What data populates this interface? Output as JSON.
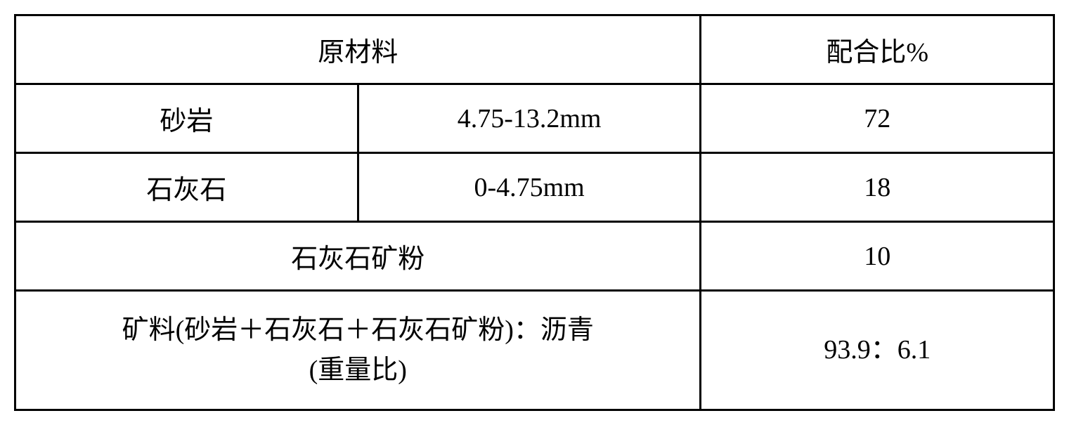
{
  "table": {
    "border_color": "#000000",
    "border_width": 3,
    "background_color": "#ffffff",
    "text_color": "#000000",
    "font_size": 38,
    "font_family": "SimSun",
    "header": {
      "col1": "原材料",
      "col2": "配合比%"
    },
    "rows": [
      {
        "material": "砂岩",
        "size": "4.75-13.2mm",
        "ratio": "72"
      },
      {
        "material": "石灰石",
        "size": "0-4.75mm",
        "ratio": "18"
      },
      {
        "material_merged": "石灰石矿粉",
        "ratio": "10"
      },
      {
        "material_merged": "矿料(砂岩＋石灰石＋石灰石矿粉)：沥青\n(重量比)",
        "ratio": "93.9：6.1"
      }
    ]
  }
}
